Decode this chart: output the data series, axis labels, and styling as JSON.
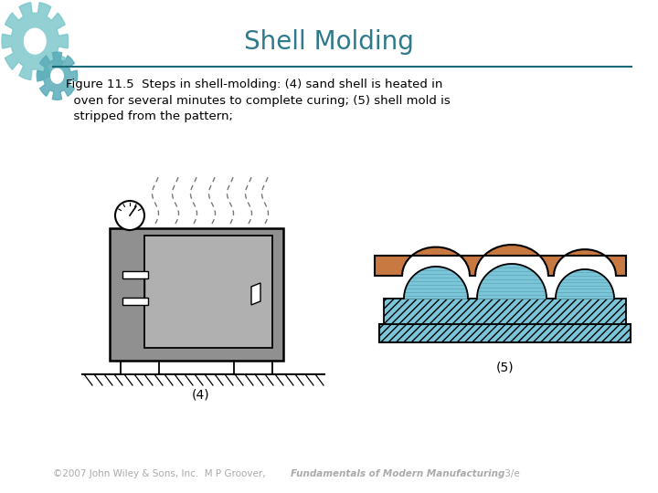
{
  "title": "Shell Molding",
  "title_color": "#2E7A8A",
  "title_fontsize": 20,
  "body_text_line1": "Figure 11.5  Steps in shell‑molding: (4) sand shell is heated in",
  "body_text_line2": "  oven for several minutes to complete curing; (5) shell mold is",
  "body_text_line3": "  stripped from the pattern;",
  "footer_normal": "©2007 John Wiley & Sons, Inc.  M P Groover,  ",
  "footer_italic": "Fundamentals of Modern Manufacturing",
  "footer_end": " 3/e",
  "bg_color": "#FFFFFF",
  "oven_color": "#909090",
  "door_color": "#A8A8A8",
  "label4": "(4)",
  "label5": "(5)",
  "shell_orange": "#C87941",
  "pattern_blue": "#7AC5D8",
  "line_color": "#1A6B78"
}
